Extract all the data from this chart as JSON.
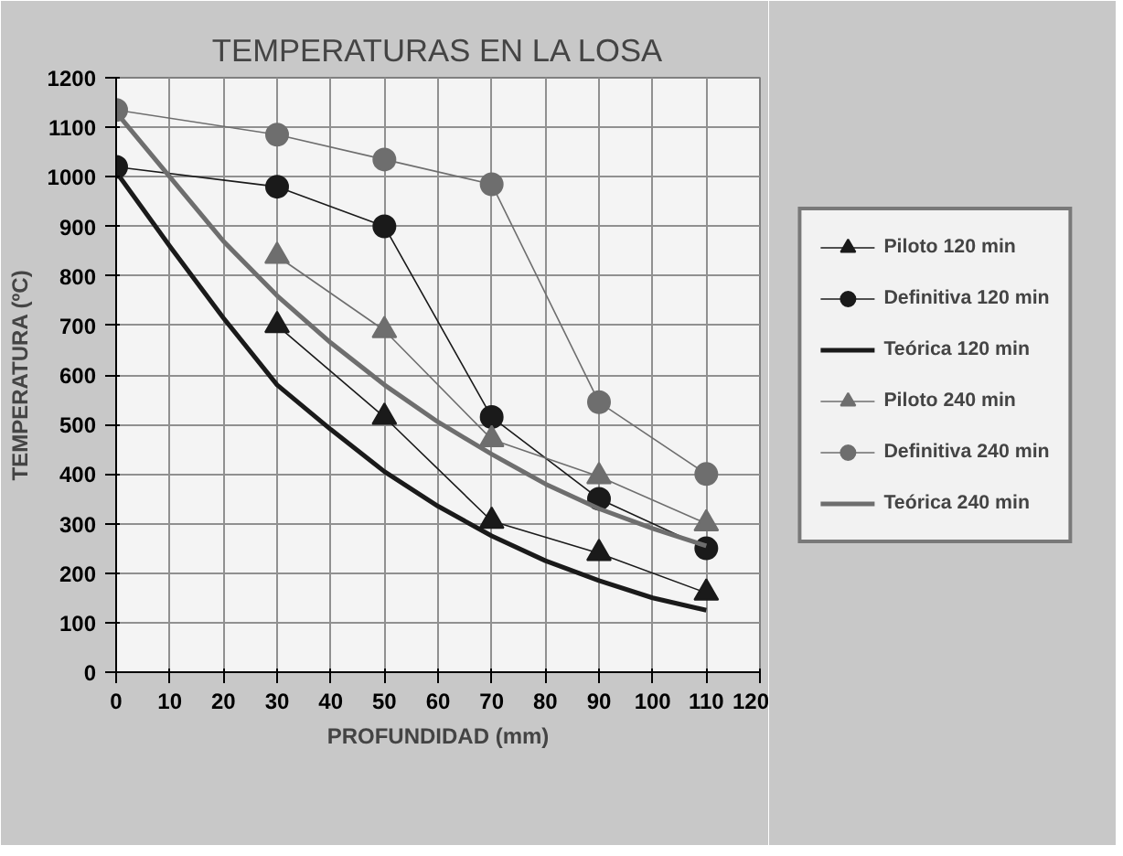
{
  "chart_data": {
    "type": "line",
    "title": "TEMPERATURAS EN LA LOSA",
    "xlabel": "PROFUNDIDAD (mm)",
    "ylabel": "TEMPERATURA (ºC)",
    "xlim": [
      0,
      120
    ],
    "xticks": [
      0,
      10,
      20,
      30,
      40,
      50,
      60,
      70,
      80,
      90,
      100,
      110,
      120
    ],
    "ylim": [
      0,
      1200
    ],
    "yticks": [
      0,
      100,
      200,
      300,
      400,
      500,
      600,
      700,
      800,
      900,
      1000,
      1100,
      1200
    ],
    "grid": true,
    "legend": "right",
    "series": [
      {
        "name": "Piloto 120 min",
        "color": "#1a1a1a",
        "marker": "triangle",
        "x": [
          30,
          50,
          70,
          90,
          110
        ],
        "values": [
          700,
          515,
          305,
          240,
          160
        ]
      },
      {
        "name": "Definitiva 120 min",
        "color": "#1a1a1a",
        "marker": "circle",
        "x": [
          0,
          30,
          50,
          70,
          90,
          110
        ],
        "values": [
          1020,
          980,
          900,
          515,
          350,
          250
        ]
      },
      {
        "name": "Teórica 120 min",
        "color": "#1a1a1a",
        "marker": "none",
        "x": [
          0,
          10,
          20,
          30,
          40,
          50,
          60,
          70,
          80,
          90,
          100,
          110
        ],
        "values": [
          1010,
          860,
          715,
          580,
          490,
          405,
          335,
          275,
          225,
          185,
          150,
          125
        ]
      },
      {
        "name": "Piloto 240 min",
        "color": "#6e6e6e",
        "marker": "triangle",
        "x": [
          30,
          50,
          70,
          90,
          110
        ],
        "values": [
          840,
          690,
          470,
          395,
          300
        ]
      },
      {
        "name": "Definitiva 240 min",
        "color": "#6e6e6e",
        "marker": "circle",
        "x": [
          0,
          30,
          50,
          70,
          90,
          110
        ],
        "values": [
          1135,
          1085,
          1035,
          985,
          545,
          400
        ]
      },
      {
        "name": "Teórica 240 min",
        "color": "#6e6e6e",
        "marker": "none",
        "x": [
          0,
          10,
          20,
          30,
          40,
          50,
          60,
          70,
          80,
          90,
          100,
          110
        ],
        "values": [
          1130,
          1000,
          870,
          760,
          665,
          580,
          505,
          440,
          380,
          330,
          290,
          255
        ]
      }
    ]
  }
}
